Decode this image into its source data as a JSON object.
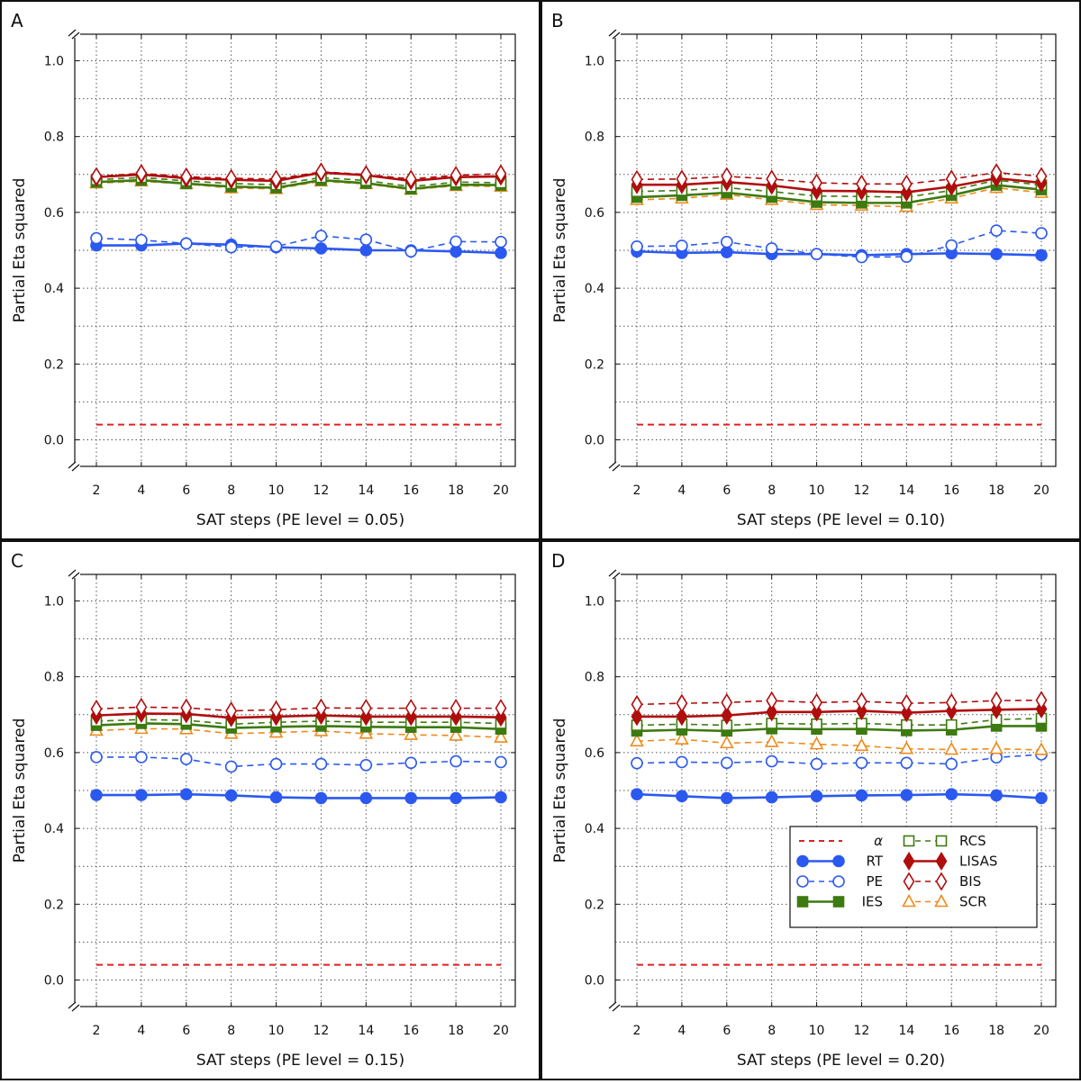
{
  "figure": {
    "colors": {
      "alpha": "#e02020",
      "RT": "#2b59f0",
      "PE": "#2b59f0",
      "IES": "#3d7a10",
      "RCS": "#3d7a10",
      "LISAS": "#b00d0d",
      "BIS": "#b00d0d",
      "SCR": "#ee8a1a"
    },
    "legend": {
      "entries": [
        {
          "key": "alpha",
          "label": "α"
        },
        {
          "key": "RT",
          "label": "RT"
        },
        {
          "key": "PE",
          "label": "PE"
        },
        {
          "key": "IES",
          "label": "IES"
        },
        {
          "key": "RCS",
          "label": "RCS"
        },
        {
          "key": "LISAS",
          "label": "LISAS"
        },
        {
          "key": "BIS",
          "label": "BIS"
        },
        {
          "key": "SCR",
          "label": "SCR"
        }
      ],
      "placement": "lower-right of panel D"
    }
  },
  "chart_data": [
    {
      "panel": "A",
      "type": "line",
      "xlabel": "SAT steps (PE level = 0.05)",
      "ylabel": "Partial Eta squared",
      "x": [
        2,
        4,
        6,
        8,
        10,
        12,
        14,
        16,
        18,
        20
      ],
      "ylim": [
        -0.07,
        1.07
      ],
      "yticks": [
        "0.0",
        "0.2",
        "0.4",
        "0.6",
        "0.8",
        "1.0"
      ],
      "grid": true,
      "series": [
        {
          "name": "α",
          "values": [
            0.04,
            0.04,
            0.04,
            0.04,
            0.04,
            0.04,
            0.04,
            0.04,
            0.04,
            0.04
          ]
        },
        {
          "name": "RT",
          "values": [
            0.513,
            0.513,
            0.518,
            0.515,
            0.508,
            0.505,
            0.5,
            0.5,
            0.497,
            0.493
          ]
        },
        {
          "name": "PE",
          "values": [
            0.532,
            0.527,
            0.518,
            0.508,
            0.51,
            0.538,
            0.528,
            0.497,
            0.523,
            0.522
          ]
        },
        {
          "name": "IES",
          "values": [
            0.68,
            0.685,
            0.676,
            0.668,
            0.665,
            0.685,
            0.677,
            0.662,
            0.673,
            0.672
          ]
        },
        {
          "name": "RCS",
          "values": [
            0.686,
            0.692,
            0.683,
            0.676,
            0.673,
            0.692,
            0.684,
            0.668,
            0.68,
            0.678
          ]
        },
        {
          "name": "LISAS",
          "values": [
            0.693,
            0.7,
            0.69,
            0.686,
            0.683,
            0.705,
            0.698,
            0.683,
            0.693,
            0.695
          ]
        },
        {
          "name": "BIS",
          "values": [
            0.695,
            0.703,
            0.694,
            0.69,
            0.688,
            0.707,
            0.7,
            0.688,
            0.698,
            0.702
          ]
        },
        {
          "name": "SCR",
          "values": [
            0.677,
            0.682,
            0.675,
            0.664,
            0.662,
            0.682,
            0.675,
            0.66,
            0.67,
            0.668
          ]
        }
      ]
    },
    {
      "panel": "B",
      "type": "line",
      "xlabel": "SAT steps (PE level = 0.10)",
      "ylabel": "Partial Eta squared",
      "x": [
        2,
        4,
        6,
        8,
        10,
        12,
        14,
        16,
        18,
        20
      ],
      "ylim": [
        -0.07,
        1.07
      ],
      "yticks": [
        "0.0",
        "0.2",
        "0.4",
        "0.6",
        "0.8",
        "1.0"
      ],
      "grid": true,
      "series": [
        {
          "name": "α",
          "values": [
            0.04,
            0.04,
            0.04,
            0.04,
            0.04,
            0.04,
            0.04,
            0.04,
            0.04,
            0.04
          ]
        },
        {
          "name": "RT",
          "values": [
            0.497,
            0.493,
            0.495,
            0.49,
            0.49,
            0.487,
            0.49,
            0.492,
            0.49,
            0.487
          ]
        },
        {
          "name": "PE",
          "values": [
            0.51,
            0.512,
            0.522,
            0.505,
            0.49,
            0.482,
            0.483,
            0.513,
            0.552,
            0.545
          ]
        },
        {
          "name": "IES",
          "values": [
            0.64,
            0.645,
            0.652,
            0.64,
            0.627,
            0.625,
            0.625,
            0.645,
            0.672,
            0.66
          ]
        },
        {
          "name": "RCS",
          "values": [
            0.655,
            0.658,
            0.665,
            0.655,
            0.643,
            0.642,
            0.64,
            0.658,
            0.685,
            0.672
          ]
        },
        {
          "name": "LISAS",
          "values": [
            0.673,
            0.673,
            0.68,
            0.671,
            0.657,
            0.656,
            0.653,
            0.668,
            0.69,
            0.678
          ]
        },
        {
          "name": "BIS",
          "values": [
            0.687,
            0.688,
            0.695,
            0.688,
            0.678,
            0.675,
            0.675,
            0.688,
            0.705,
            0.695
          ]
        },
        {
          "name": "SCR",
          "values": [
            0.633,
            0.637,
            0.647,
            0.633,
            0.62,
            0.618,
            0.615,
            0.637,
            0.665,
            0.652
          ]
        }
      ]
    },
    {
      "panel": "C",
      "type": "line",
      "xlabel": "SAT steps (PE level = 0.15)",
      "ylabel": "Partial Eta squared",
      "x": [
        2,
        4,
        6,
        8,
        10,
        12,
        14,
        16,
        18,
        20
      ],
      "ylim": [
        -0.07,
        1.07
      ],
      "yticks": [
        "0.0",
        "0.2",
        "0.4",
        "0.6",
        "0.8",
        "1.0"
      ],
      "grid": true,
      "series": [
        {
          "name": "α",
          "values": [
            0.04,
            0.04,
            0.04,
            0.04,
            0.04,
            0.04,
            0.04,
            0.04,
            0.04,
            0.04
          ]
        },
        {
          "name": "RT",
          "values": [
            0.488,
            0.488,
            0.49,
            0.487,
            0.482,
            0.48,
            0.48,
            0.48,
            0.48,
            0.482
          ]
        },
        {
          "name": "PE",
          "values": [
            0.588,
            0.588,
            0.583,
            0.563,
            0.57,
            0.57,
            0.567,
            0.573,
            0.577,
            0.575
          ]
        },
        {
          "name": "IES",
          "values": [
            0.672,
            0.677,
            0.675,
            0.665,
            0.668,
            0.67,
            0.668,
            0.667,
            0.667,
            0.662
          ]
        },
        {
          "name": "RCS",
          "values": [
            0.683,
            0.687,
            0.685,
            0.675,
            0.68,
            0.683,
            0.68,
            0.68,
            0.68,
            0.677
          ]
        },
        {
          "name": "LISAS",
          "values": [
            0.698,
            0.703,
            0.702,
            0.692,
            0.695,
            0.698,
            0.695,
            0.695,
            0.695,
            0.693
          ]
        },
        {
          "name": "BIS",
          "values": [
            0.715,
            0.72,
            0.718,
            0.71,
            0.713,
            0.718,
            0.717,
            0.717,
            0.717,
            0.717
          ]
        },
        {
          "name": "SCR",
          "values": [
            0.658,
            0.663,
            0.662,
            0.65,
            0.653,
            0.657,
            0.65,
            0.647,
            0.645,
            0.64
          ]
        }
      ]
    },
    {
      "panel": "D",
      "type": "line",
      "xlabel": "SAT steps (PE level = 0.20)",
      "ylabel": "Partial Eta squared",
      "x": [
        2,
        4,
        6,
        8,
        10,
        12,
        14,
        16,
        18,
        20
      ],
      "ylim": [
        -0.07,
        1.07
      ],
      "yticks": [
        "0.0",
        "0.2",
        "0.4",
        "0.6",
        "0.8",
        "1.0"
      ],
      "grid": true,
      "series": [
        {
          "name": "α",
          "values": [
            0.04,
            0.04,
            0.04,
            0.04,
            0.04,
            0.04,
            0.04,
            0.04,
            0.04,
            0.04
          ]
        },
        {
          "name": "RT",
          "values": [
            0.49,
            0.485,
            0.48,
            0.482,
            0.485,
            0.487,
            0.488,
            0.49,
            0.487,
            0.48
          ]
        },
        {
          "name": "PE",
          "values": [
            0.572,
            0.575,
            0.573,
            0.577,
            0.57,
            0.573,
            0.573,
            0.57,
            0.587,
            0.595
          ]
        },
        {
          "name": "IES",
          "values": [
            0.657,
            0.66,
            0.657,
            0.663,
            0.662,
            0.662,
            0.658,
            0.66,
            0.67,
            0.67
          ]
        },
        {
          "name": "RCS",
          "values": [
            0.672,
            0.675,
            0.672,
            0.677,
            0.675,
            0.677,
            0.673,
            0.673,
            0.687,
            0.69
          ]
        },
        {
          "name": "LISAS",
          "values": [
            0.695,
            0.695,
            0.698,
            0.707,
            0.707,
            0.71,
            0.705,
            0.71,
            0.713,
            0.715
          ]
        },
        {
          "name": "BIS",
          "values": [
            0.727,
            0.73,
            0.732,
            0.737,
            0.732,
            0.735,
            0.73,
            0.732,
            0.737,
            0.738
          ]
        },
        {
          "name": "SCR",
          "values": [
            0.63,
            0.635,
            0.625,
            0.628,
            0.622,
            0.618,
            0.61,
            0.608,
            0.61,
            0.607
          ]
        }
      ]
    }
  ]
}
